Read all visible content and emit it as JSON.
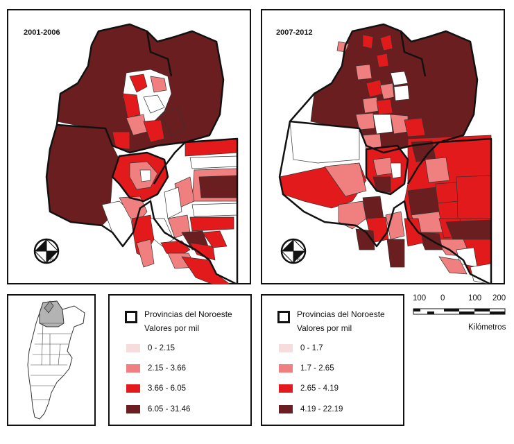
{
  "maps": [
    {
      "period": "2001-2006",
      "legend": {
        "provinces_label": "Provincias del Noroeste",
        "values_label": "Valores por mil",
        "classes": [
          {
            "range": "0 - 2.15",
            "color": "#f6dcdc"
          },
          {
            "range": "2.15 - 3.66",
            "color": "#f08080"
          },
          {
            "range": "3.66 - 6.05",
            "color": "#e31a1c"
          },
          {
            "range": "6.05 - 31.46",
            "color": "#6b1e20"
          }
        ]
      }
    },
    {
      "period": "2007-2012",
      "legend": {
        "provinces_label": "Provincias del Noroeste",
        "values_label": "Valores por mil",
        "classes": [
          {
            "range": "0 - 1.7",
            "color": "#f6dcdc"
          },
          {
            "range": "1.7 - 2.65",
            "color": "#f08080"
          },
          {
            "range": "2.65 - 4.19",
            "color": "#e31a1c"
          },
          {
            "range": "4.19 - 22.19",
            "color": "#6b1e20"
          }
        ]
      }
    }
  ],
  "scale_bar": {
    "labels": [
      "100",
      "0",
      "100",
      "200"
    ],
    "unit": "Kilómetros"
  },
  "north_arrow_label": "N",
  "colors": {
    "border": "#111111",
    "dark": "#6b1e20",
    "red": "#e31a1c",
    "pink": "#f08080",
    "light": "#ffffff"
  }
}
